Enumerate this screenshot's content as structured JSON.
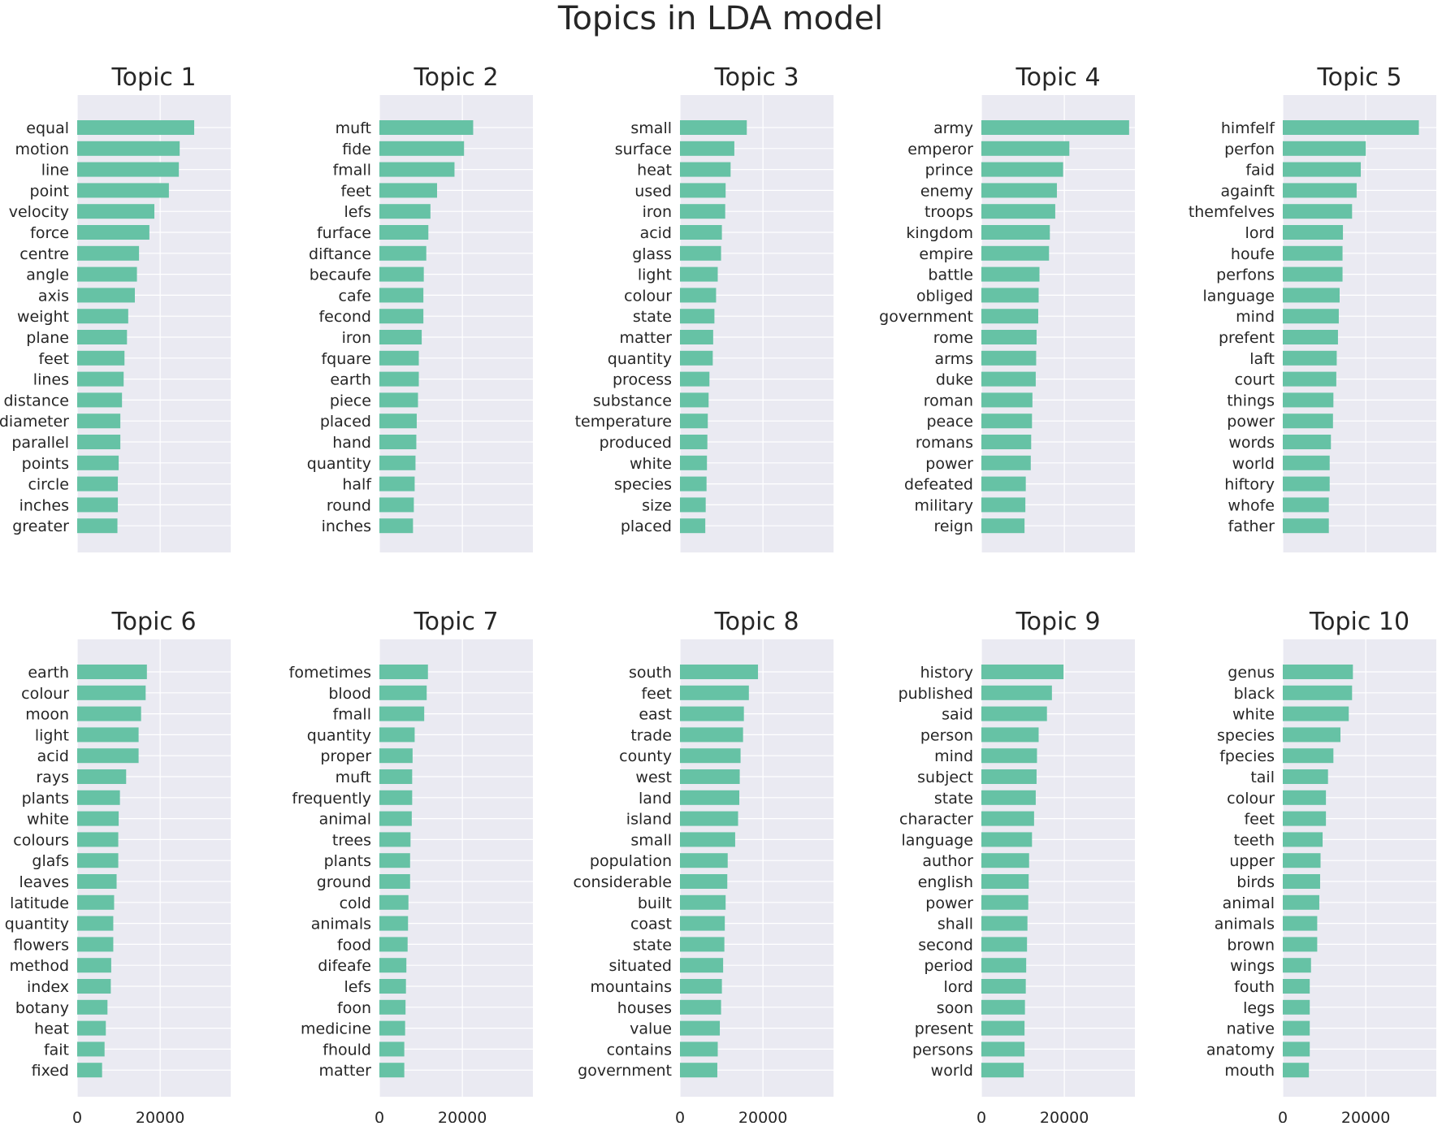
{
  "chart_data": {
    "type": "bar",
    "orientation": "horizontal",
    "title": "Topics in LDA model",
    "xlim": [
      0,
      37000
    ],
    "xticks": [
      0,
      20000
    ],
    "grid": true,
    "bar_color": "#66c2a5",
    "background_color": "#eaeaf2",
    "panels": [
      {
        "title": "Topic 1",
        "categories": [
          "equal",
          "motion",
          "line",
          "point",
          "velocity",
          "force",
          "centre",
          "angle",
          "axis",
          "weight",
          "plane",
          "feet",
          "lines",
          "distance",
          "diameter",
          "parallel",
          "points",
          "circle",
          "inches",
          "greater"
        ],
        "values": [
          28200,
          24700,
          24500,
          22100,
          18600,
          17400,
          14900,
          14400,
          13900,
          12300,
          12000,
          11400,
          11200,
          10800,
          10400,
          10400,
          10000,
          9800,
          9800,
          9700
        ]
      },
      {
        "title": "Topic 2",
        "categories": [
          "muft",
          "fide",
          "fmall",
          "feet",
          "lefs",
          "furface",
          "diftance",
          "becaufe",
          "cafe",
          "fecond",
          "iron",
          "fquare",
          "earth",
          "piece",
          "placed",
          "hand",
          "quantity",
          "half",
          "round",
          "inches"
        ],
        "values": [
          22600,
          20400,
          18100,
          13900,
          12300,
          11800,
          11300,
          10700,
          10600,
          10600,
          10200,
          9500,
          9500,
          9300,
          9000,
          8900,
          8700,
          8500,
          8300,
          8100
        ]
      },
      {
        "title": "Topic 3",
        "categories": [
          "small",
          "surface",
          "heat",
          "used",
          "iron",
          "acid",
          "glass",
          "light",
          "colour",
          "state",
          "matter",
          "quantity",
          "process",
          "substance",
          "temperature",
          "produced",
          "white",
          "species",
          "size",
          "placed"
        ],
        "values": [
          16100,
          13100,
          12200,
          11000,
          10900,
          10100,
          9900,
          9100,
          8700,
          8300,
          8000,
          7900,
          7100,
          6900,
          6700,
          6600,
          6500,
          6400,
          6200,
          6100
        ]
      },
      {
        "title": "Topic 4",
        "categories": [
          "army",
          "emperor",
          "prince",
          "enemy",
          "troops",
          "kingdom",
          "empire",
          "battle",
          "obliged",
          "government",
          "rome",
          "arms",
          "duke",
          "roman",
          "peace",
          "romans",
          "power",
          "defeated",
          "military",
          "reign"
        ],
        "values": [
          35600,
          21200,
          19700,
          18200,
          17800,
          16500,
          16300,
          14000,
          13800,
          13700,
          13300,
          13200,
          13100,
          12300,
          12200,
          12000,
          11900,
          10700,
          10600,
          10400
        ]
      },
      {
        "title": "Topic 5",
        "categories": [
          "himfelf",
          "perfon",
          "faid",
          "againft",
          "themfelves",
          "lord",
          "houfe",
          "perfons",
          "language",
          "mind",
          "prefent",
          "laft",
          "court",
          "things",
          "power",
          "words",
          "world",
          "hiftory",
          "whofe",
          "father"
        ],
        "values": [
          32800,
          20000,
          18800,
          17800,
          16700,
          14500,
          14400,
          14400,
          13700,
          13500,
          13300,
          13000,
          12900,
          12200,
          12100,
          11600,
          11300,
          11300,
          11100,
          11100
        ]
      },
      {
        "title": "Topic 6",
        "categories": [
          "earth",
          "colour",
          "moon",
          "light",
          "acid",
          "rays",
          "plants",
          "white",
          "colours",
          "glafs",
          "leaves",
          "latitude",
          "quantity",
          "flowers",
          "method",
          "index",
          "botany",
          "heat",
          "fait",
          "fixed"
        ],
        "values": [
          16800,
          16500,
          15400,
          14800,
          14800,
          11800,
          10300,
          10000,
          9900,
          9900,
          9500,
          8900,
          8700,
          8700,
          8200,
          8100,
          7300,
          6900,
          6600,
          6000
        ]
      },
      {
        "title": "Topic 7",
        "categories": [
          "fometimes",
          "blood",
          "fmall",
          "quantity",
          "proper",
          "muft",
          "frequently",
          "animal",
          "trees",
          "plants",
          "ground",
          "cold",
          "animals",
          "food",
          "difeafe",
          "lefs",
          "foon",
          "medicine",
          "fhould",
          "matter"
        ],
        "values": [
          11700,
          11400,
          10800,
          8500,
          8000,
          7900,
          7900,
          7800,
          7500,
          7400,
          7400,
          7000,
          6900,
          6800,
          6500,
          6400,
          6300,
          6200,
          6000,
          6000
        ]
      },
      {
        "title": "Topic 8",
        "categories": [
          "south",
          "feet",
          "east",
          "trade",
          "county",
          "west",
          "land",
          "island",
          "small",
          "population",
          "considerable",
          "built",
          "coast",
          "state",
          "situated",
          "mountains",
          "houses",
          "value",
          "contains",
          "government"
        ],
        "values": [
          18800,
          16600,
          15400,
          15200,
          14600,
          14400,
          14300,
          14000,
          13300,
          11500,
          11400,
          11000,
          10800,
          10700,
          10400,
          10100,
          9900,
          9600,
          9100,
          9000
        ]
      },
      {
        "title": "Topic 9",
        "categories": [
          "history",
          "published",
          "said",
          "person",
          "mind",
          "subject",
          "state",
          "character",
          "language",
          "author",
          "english",
          "power",
          "shall",
          "second",
          "period",
          "lord",
          "soon",
          "present",
          "persons",
          "world"
        ],
        "values": [
          19800,
          17000,
          15800,
          13800,
          13400,
          13300,
          13100,
          12700,
          12200,
          11500,
          11400,
          11300,
          11100,
          11000,
          10800,
          10700,
          10500,
          10400,
          10400,
          10200
        ]
      },
      {
        "title": "Topic 10",
        "categories": [
          "genus",
          "black",
          "white",
          "species",
          "fpecies",
          "tail",
          "colour",
          "feet",
          "teeth",
          "upper",
          "birds",
          "animal",
          "animals",
          "brown",
          "wings",
          "fouth",
          "legs",
          "native",
          "anatomy",
          "mouth"
        ],
        "values": [
          16900,
          16700,
          15900,
          13900,
          12200,
          10900,
          10400,
          10400,
          9600,
          9100,
          9000,
          8800,
          8300,
          8300,
          6800,
          6500,
          6500,
          6500,
          6500,
          6300
        ]
      }
    ]
  }
}
